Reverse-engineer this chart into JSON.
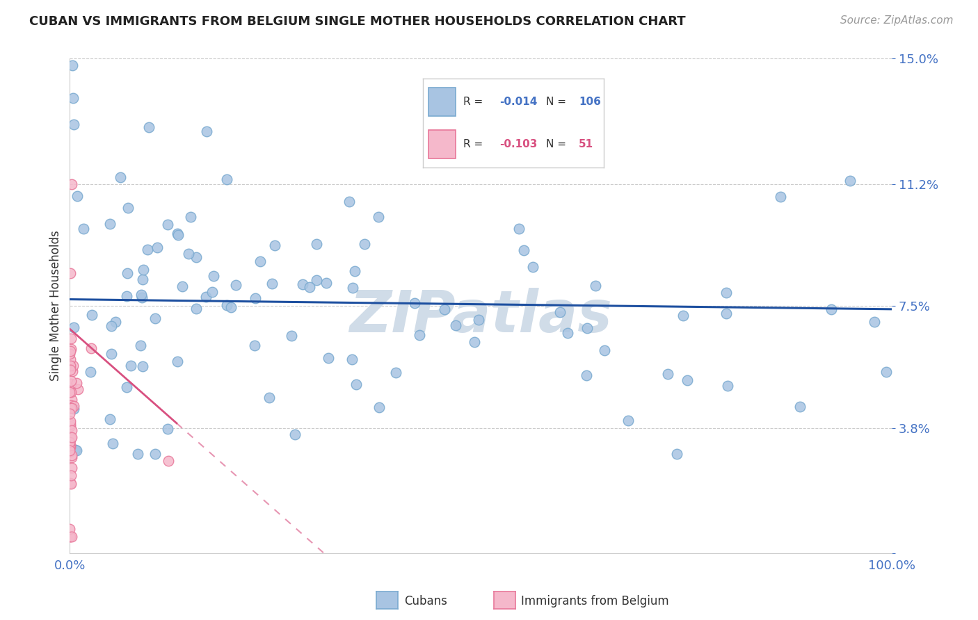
{
  "title": "CUBAN VS IMMIGRANTS FROM BELGIUM SINGLE MOTHER HOUSEHOLDS CORRELATION CHART",
  "source": "Source: ZipAtlas.com",
  "ylabel": "Single Mother Households",
  "xlim": [
    0,
    1.0
  ],
  "ylim": [
    0,
    0.15
  ],
  "cuban_color": "#a8c4e2",
  "cuban_edge_color": "#7aaad0",
  "belgium_color": "#f5b8cb",
  "belgium_edge_color": "#e8789a",
  "trend_cuban_color": "#1e50a0",
  "trend_belgium_color": "#d85080",
  "watermark": "ZIPatlas",
  "watermark_color": "#d0dce8",
  "background_color": "#ffffff",
  "grid_color": "#cccccc",
  "tick_color": "#4472c4",
  "legend_labels": [
    "Cubans",
    "Immigrants from Belgium"
  ],
  "cuban_R": "-0.014",
  "cuban_N": "106",
  "belgium_R": "-0.103",
  "belgium_N": "51"
}
